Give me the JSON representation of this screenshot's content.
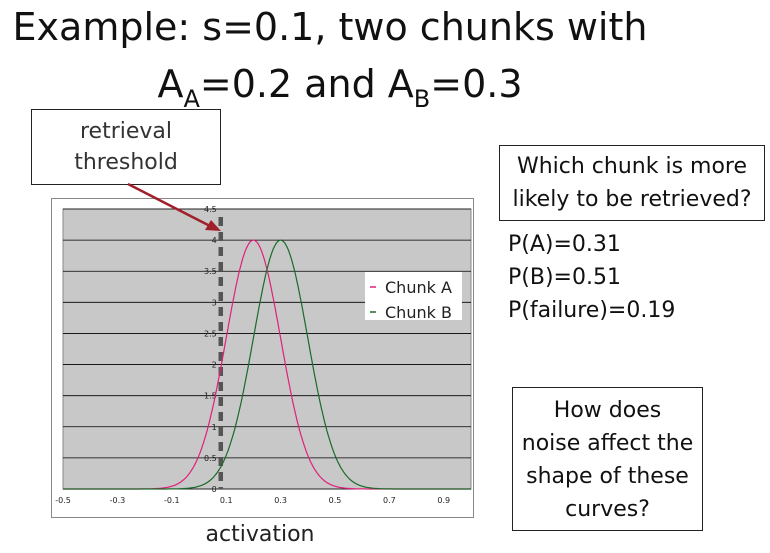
{
  "title": {
    "line1": "Example: s=0.1, two chunks with",
    "line2_a": "A",
    "line2_a_sub": "A",
    "line2_mid": "=0.2 and A",
    "line2_b_sub": "B",
    "line2_end": "=0.3"
  },
  "retrieval_box": {
    "line1": "retrieval",
    "line2": "threshold"
  },
  "question_box": {
    "line1": "Which chunk is more",
    "line2": "likely to be retrieved?"
  },
  "probabilities": [
    "P(A)=0.31",
    "P(B)=0.51",
    "P(failure)=0.19"
  ],
  "noise_box": {
    "lines": [
      "How does",
      "noise affect the",
      "shape of these",
      "curves?"
    ]
  },
  "x_axis_label": "activation",
  "colors": {
    "chunk_a": "#e0207a",
    "chunk_b": "#1a6b2a",
    "threshold": "#555555",
    "plot_bg": "#c8c8c8",
    "arrow": "#a0202a"
  },
  "chart_data": {
    "type": "line",
    "x_ticks": [
      -0.5,
      -0.3,
      -0.1,
      0.1,
      0.3,
      0.5,
      0.7,
      0.9
    ],
    "x_tick_labels": [
      "-0.5",
      "-0.3",
      "-0.1",
      "0.1",
      "0.3",
      "0.5",
      "0.7",
      "0.9"
    ],
    "y_ticks": [
      0,
      0.5,
      1,
      1.5,
      2,
      2.5,
      3,
      3.5,
      4,
      4.5
    ],
    "y_tick_labels": [
      "0",
      "0.5",
      "1",
      "1.5",
      "2",
      "2.5",
      "3",
      "3.5",
      "4",
      "4.5"
    ],
    "xlim": [
      -0.5,
      1.0
    ],
    "ylim": [
      0,
      4.5
    ],
    "threshold": 0.08,
    "series": [
      {
        "name": "Chunk A",
        "mean": 0.2,
        "peak": 4.0,
        "sd": 0.1,
        "color": "#e0207a"
      },
      {
        "name": "Chunk B",
        "mean": 0.3,
        "peak": 4.0,
        "sd": 0.1,
        "color": "#1a6b2a"
      }
    ],
    "legend_position": "right"
  }
}
